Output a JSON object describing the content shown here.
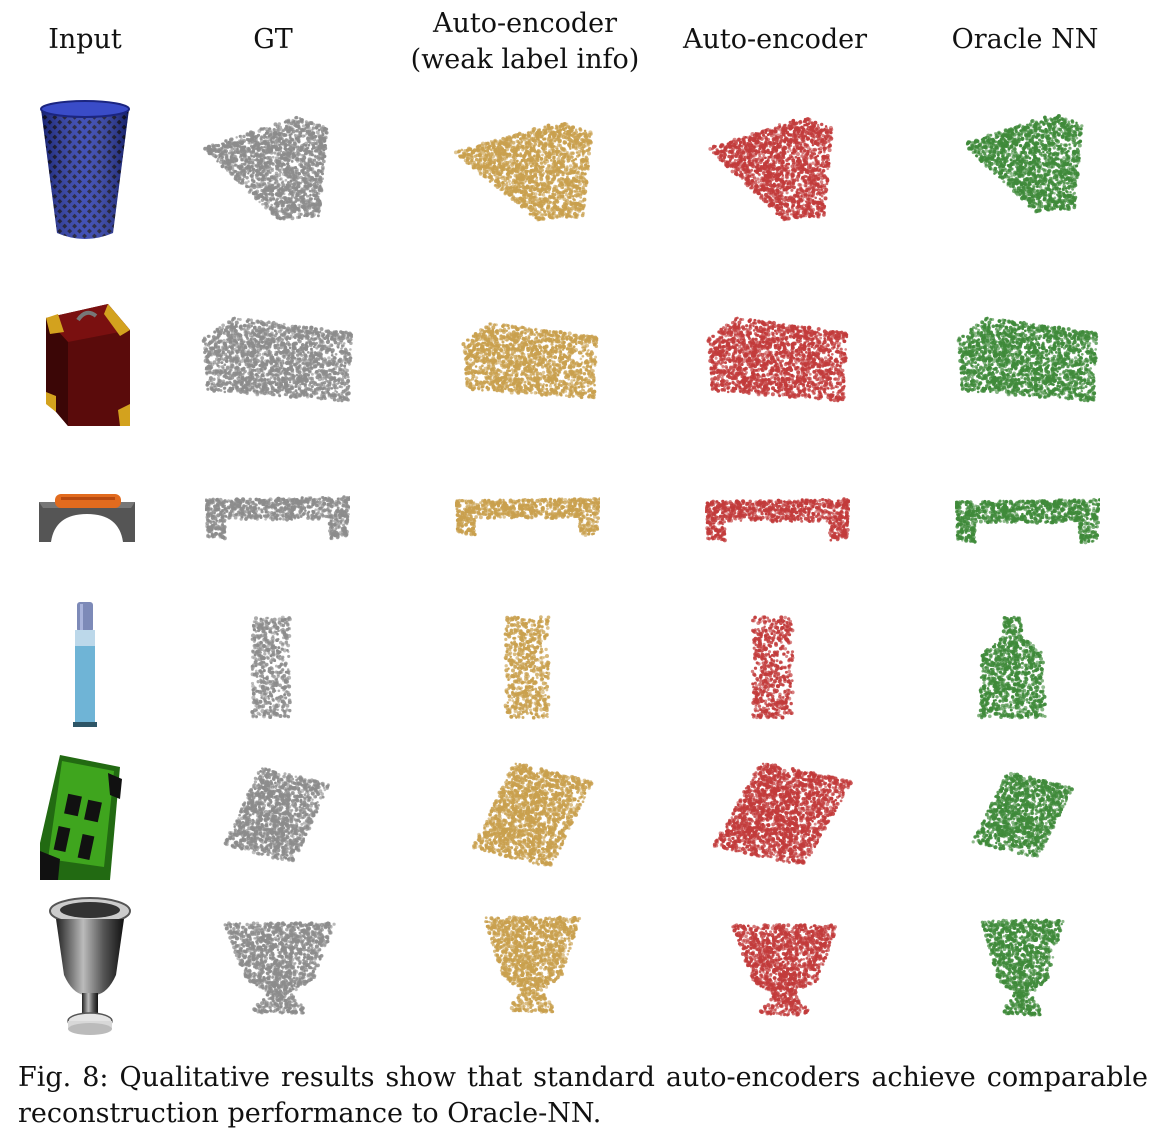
{
  "headers": {
    "input": "Input",
    "gt": "GT",
    "ae_weak_1": "Auto-encoder",
    "ae_weak_2": "(weak label info)",
    "ae": "Auto-encoder",
    "oracle": "Oracle NN"
  },
  "columns": [
    {
      "key": "gt",
      "color": "#8c8c8c"
    },
    {
      "key": "ae_weak",
      "color": "#c9a04e"
    },
    {
      "key": "ae",
      "color": "#c23b3b"
    },
    {
      "key": "oracle",
      "color": "#3f8a3a"
    }
  ],
  "rows": [
    {
      "object": "trash-can"
    },
    {
      "object": "suitcase"
    },
    {
      "object": "bench"
    },
    {
      "object": "bottle"
    },
    {
      "object": "car"
    },
    {
      "object": "vase"
    }
  ],
  "caption": "Fig. 8: Qualitative results show that standard auto-encoders achieve comparable reconstruction performance to Oracle-NN."
}
